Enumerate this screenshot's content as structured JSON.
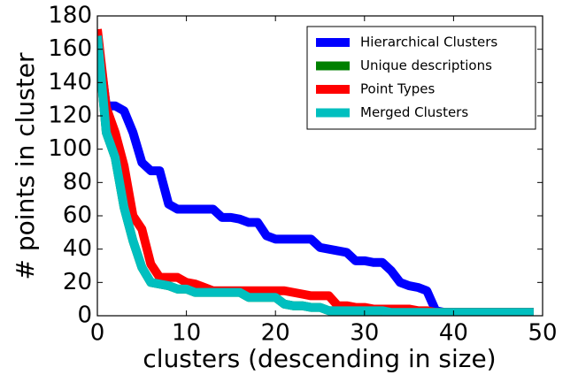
{
  "chart_data": {
    "type": "line",
    "xlabel": "clusters (descending in size)",
    "ylabel": "# points in cluster",
    "x": [
      0,
      1,
      2,
      3,
      4,
      5,
      6,
      7,
      8,
      9,
      10,
      11,
      12,
      13,
      14,
      15,
      16,
      17,
      18,
      19,
      20,
      21,
      22,
      23,
      24,
      25,
      26,
      27,
      28,
      29,
      30,
      31,
      32,
      33,
      34,
      35,
      36,
      37,
      38,
      39,
      40,
      41,
      42,
      43,
      44,
      45,
      46,
      47,
      48,
      49
    ],
    "series": [
      {
        "name": "Hierarchical Clusters",
        "color": "#0000ff",
        "values": [
          168,
          126,
          126,
          123,
          110,
          92,
          87,
          87,
          67,
          64,
          64,
          64,
          64,
          64,
          59,
          59,
          58,
          56,
          56,
          48,
          46,
          46,
          46,
          46,
          46,
          41,
          40,
          39,
          38,
          33,
          33,
          32,
          32,
          27,
          20,
          18,
          17,
          15,
          3,
          2,
          2,
          2,
          2,
          2,
          2,
          2,
          2,
          2,
          2,
          2
        ]
      },
      {
        "name": "Unique descriptions",
        "color": "#008000",
        "values": [
          168,
          110,
          95,
          65,
          45,
          29,
          20,
          19,
          18,
          16,
          16,
          14,
          14,
          14,
          14,
          14,
          14,
          11,
          11,
          11,
          11,
          7,
          6,
          6,
          5,
          5,
          3,
          3,
          3,
          3,
          3,
          3,
          3,
          2,
          2,
          2,
          2,
          2,
          2,
          2,
          2,
          2,
          2,
          2,
          2,
          2,
          2,
          2,
          2,
          2
        ]
      },
      {
        "name": "Point Types",
        "color": "#ff0000",
        "values": [
          172,
          125,
          110,
          90,
          60,
          52,
          31,
          23,
          23,
          23,
          20,
          19,
          17,
          15,
          15,
          15,
          15,
          15,
          15,
          15,
          15,
          15,
          14,
          13,
          12,
          12,
          12,
          6,
          6,
          5,
          5,
          4,
          4,
          4,
          4,
          4,
          3,
          3,
          2,
          2,
          2,
          2,
          2,
          2,
          2,
          2,
          2,
          2,
          2,
          2
        ]
      },
      {
        "name": "Merged Clusters",
        "color": "#00bfbf",
        "values": [
          168,
          110,
          95,
          65,
          45,
          29,
          20,
          19,
          18,
          16,
          16,
          14,
          14,
          14,
          14,
          14,
          14,
          11,
          11,
          11,
          11,
          7,
          6,
          6,
          5,
          5,
          3,
          3,
          3,
          3,
          3,
          3,
          3,
          2,
          2,
          2,
          2,
          2,
          2,
          2,
          2,
          2,
          2,
          2,
          2,
          2,
          2,
          2,
          2,
          2
        ]
      }
    ],
    "xlim": [
      0,
      50
    ],
    "xticks": [
      0,
      10,
      20,
      30,
      40,
      50
    ],
    "ylim": [
      0,
      180
    ],
    "yticks": [
      0,
      20,
      40,
      60,
      80,
      100,
      120,
      140,
      160,
      180
    ],
    "legend": "upper right"
  }
}
